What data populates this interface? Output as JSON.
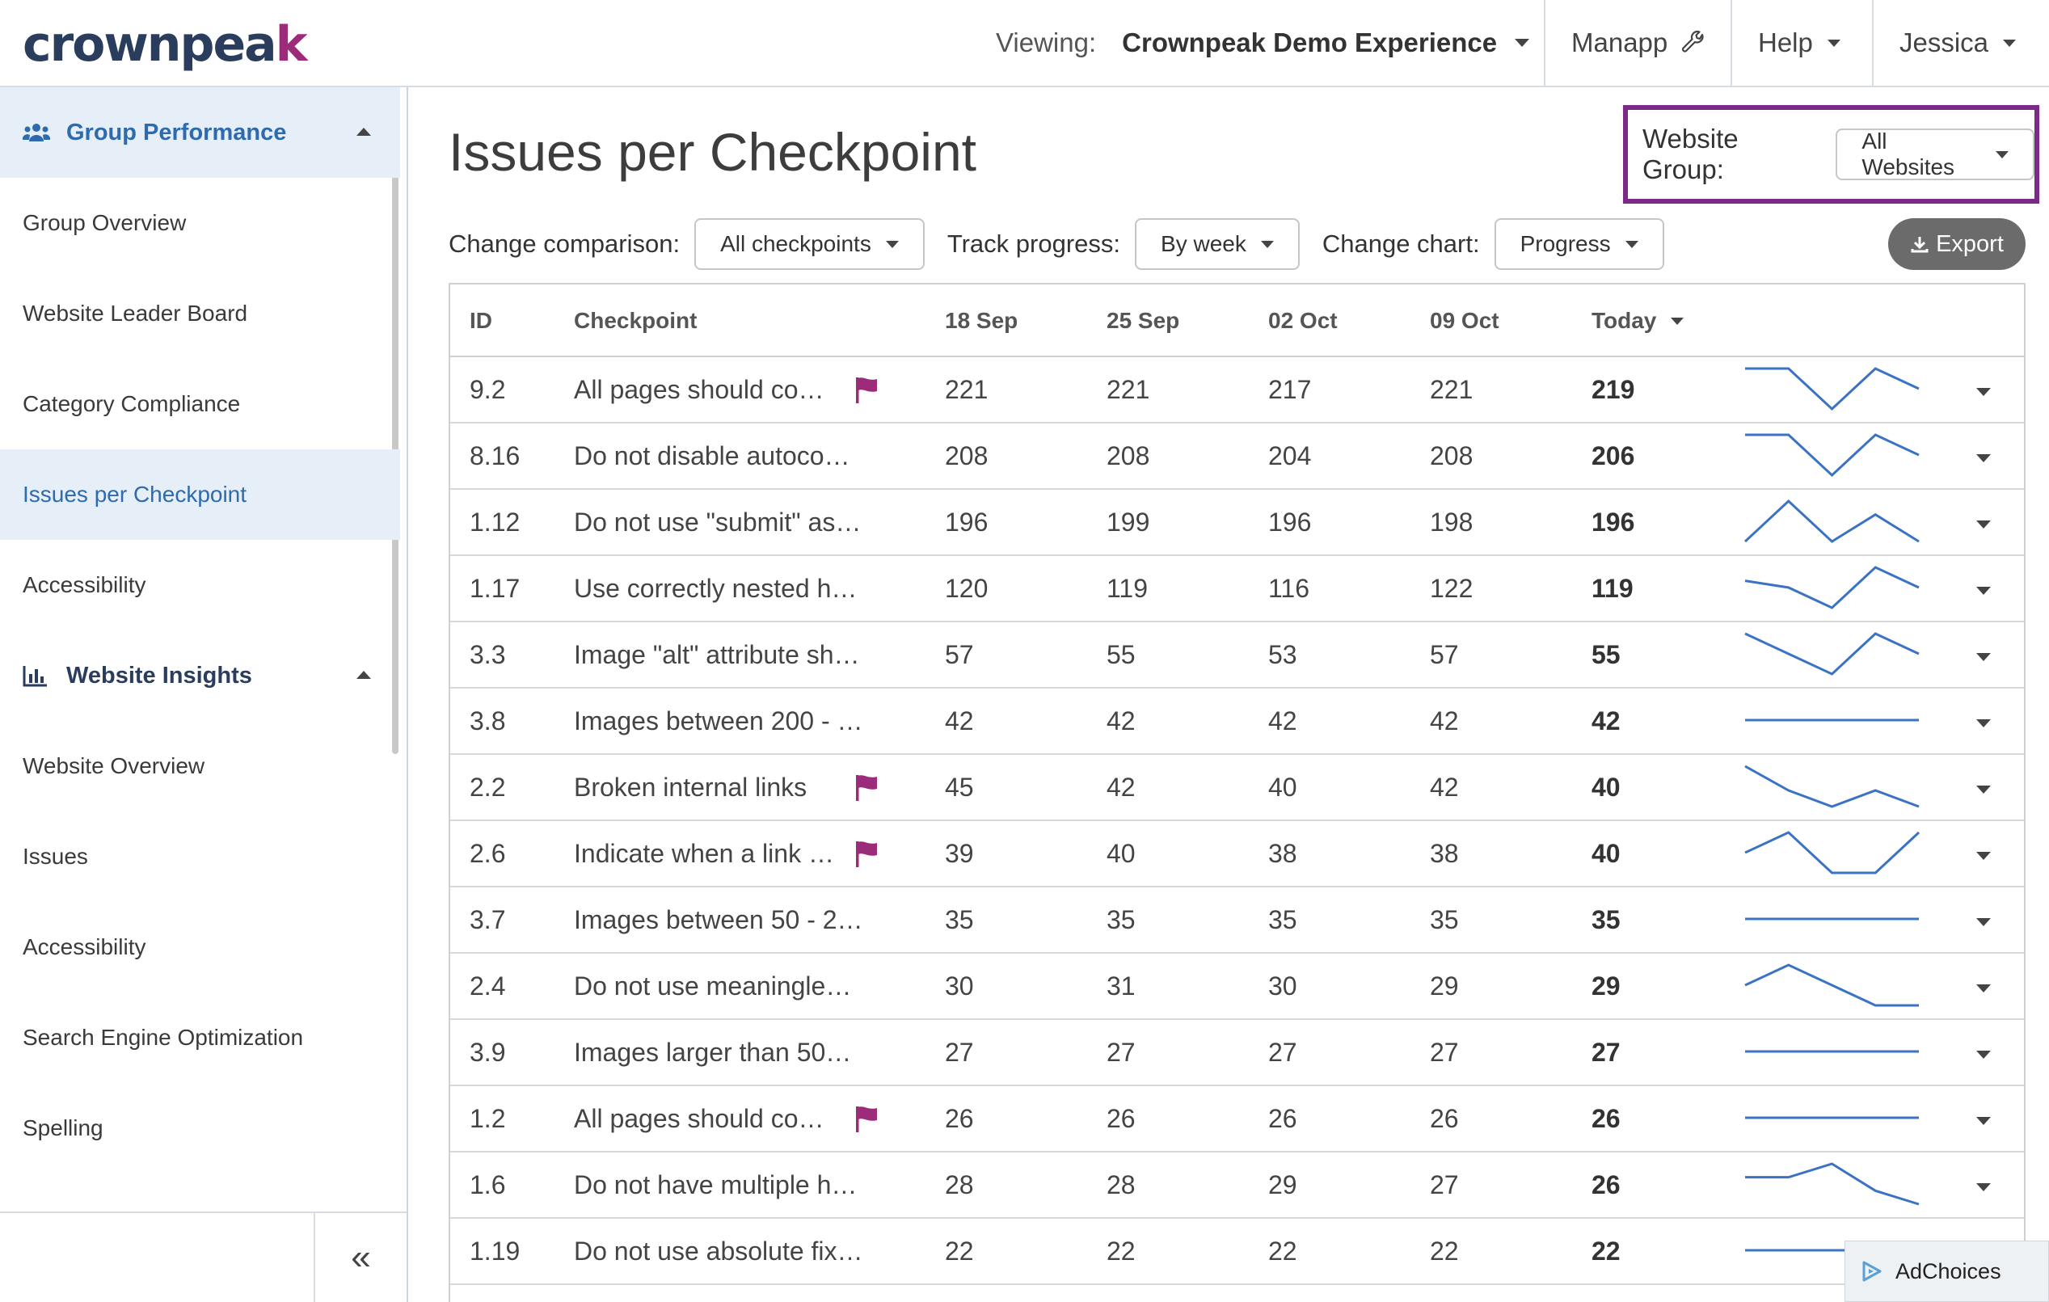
{
  "brand": {
    "logo_main": "crownpea",
    "logo_accent": "k",
    "accent_color": "#9c2c7a",
    "primary_color": "#2b3d5c"
  },
  "header": {
    "viewing_label": "Viewing:",
    "viewing_value": "Crownpeak Demo Experience",
    "manapp_label": "Manapp",
    "help_label": "Help",
    "user_label": "Jessica"
  },
  "sidebar": {
    "group1": {
      "label": "Group Performance",
      "icon": "users-icon"
    },
    "group1_items": [
      "Group Overview",
      "Website Leader Board",
      "Category Compliance",
      "Issues per Checkpoint",
      "Accessibility"
    ],
    "active_item": "Issues per Checkpoint",
    "group2": {
      "label": "Website Insights",
      "icon": "bar-chart-icon"
    },
    "group2_items": [
      "Website Overview",
      "Issues",
      "Accessibility",
      "Search Engine Optimization",
      "Spelling"
    ],
    "collapse_glyph": "«"
  },
  "main": {
    "title": "Issues per Checkpoint",
    "website_group_label": "Website Group:",
    "website_group_value": "All Websites",
    "change_comparison_label": "Change comparison:",
    "change_comparison_value": "All checkpoints",
    "track_progress_label": "Track progress:",
    "track_progress_value": "By week",
    "change_chart_label": "Change chart:",
    "change_chart_value": "Progress",
    "export_label": "Export"
  },
  "table": {
    "columns": [
      "ID",
      "Checkpoint",
      "18 Sep",
      "25 Sep",
      "02 Oct",
      "09 Oct",
      "Today"
    ],
    "rows": [
      {
        "id": "9.2",
        "checkpoint": "All pages should co…",
        "flag": true,
        "values": [
          "221",
          "221",
          "217",
          "221"
        ],
        "today": "219"
      },
      {
        "id": "8.16",
        "checkpoint": "Do not disable autoco…",
        "flag": false,
        "values": [
          "208",
          "208",
          "204",
          "208"
        ],
        "today": "206"
      },
      {
        "id": "1.12",
        "checkpoint": "Do not use \"submit\" as…",
        "flag": false,
        "values": [
          "196",
          "199",
          "196",
          "198"
        ],
        "today": "196"
      },
      {
        "id": "1.17",
        "checkpoint": "Use correctly nested h…",
        "flag": false,
        "values": [
          "120",
          "119",
          "116",
          "122"
        ],
        "today": "119"
      },
      {
        "id": "3.3",
        "checkpoint": "Image \"alt\" attribute sh…",
        "flag": false,
        "values": [
          "57",
          "55",
          "53",
          "57"
        ],
        "today": "55"
      },
      {
        "id": "3.8",
        "checkpoint": "Images between 200 - …",
        "flag": false,
        "values": [
          "42",
          "42",
          "42",
          "42"
        ],
        "today": "42"
      },
      {
        "id": "2.2",
        "checkpoint": "Broken internal links",
        "flag": true,
        "values": [
          "45",
          "42",
          "40",
          "42"
        ],
        "today": "40"
      },
      {
        "id": "2.6",
        "checkpoint": "Indicate when a link …",
        "flag": true,
        "values": [
          "39",
          "40",
          "38",
          "38"
        ],
        "today": "40"
      },
      {
        "id": "3.7",
        "checkpoint": "Images between 50 - 2…",
        "flag": false,
        "values": [
          "35",
          "35",
          "35",
          "35"
        ],
        "today": "35"
      },
      {
        "id": "2.4",
        "checkpoint": "Do not use meaningle…",
        "flag": false,
        "values": [
          "30",
          "31",
          "30",
          "29"
        ],
        "today": "29"
      },
      {
        "id": "3.9",
        "checkpoint": "Images larger than 50…",
        "flag": false,
        "values": [
          "27",
          "27",
          "27",
          "27"
        ],
        "today": "27"
      },
      {
        "id": "1.2",
        "checkpoint": "All pages should co…",
        "flag": true,
        "values": [
          "26",
          "26",
          "26",
          "26"
        ],
        "today": "26"
      },
      {
        "id": "1.6",
        "checkpoint": "Do not have multiple h…",
        "flag": false,
        "values": [
          "28",
          "28",
          "29",
          "27"
        ],
        "today": "26"
      },
      {
        "id": "1.19",
        "checkpoint": "Do not use absolute fix…",
        "flag": false,
        "values": [
          "22",
          "22",
          "22",
          "22"
        ],
        "today": "22"
      }
    ]
  },
  "adchoices_label": "AdChoices"
}
